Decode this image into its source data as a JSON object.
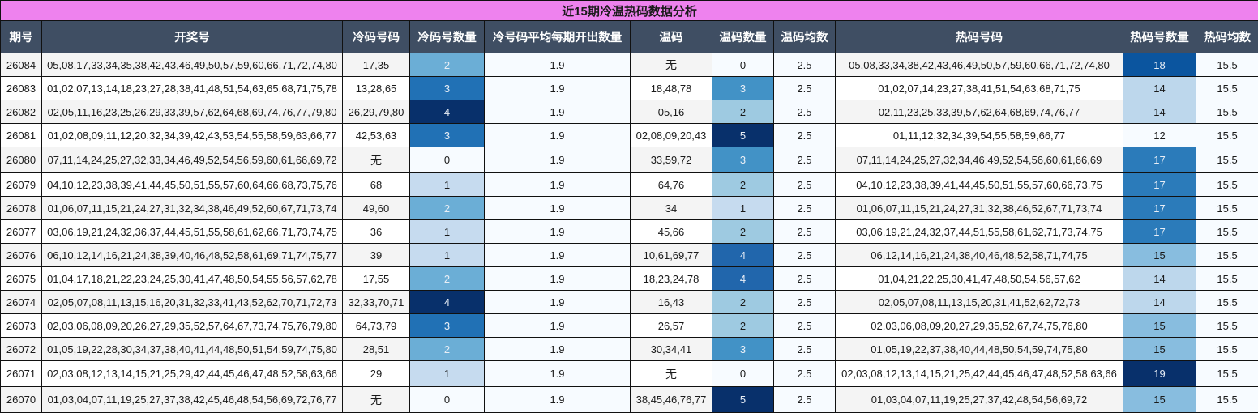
{
  "title": "近15期冷温热码数据分析",
  "columns": [
    "期号",
    "开奖号",
    "冷码号码",
    "冷码号数量",
    "冷号码平均每期开出数量",
    "温码",
    "温码数量",
    "温码均数",
    "热码号码",
    "热码号数量",
    "热码均数"
  ],
  "rows": [
    {
      "issue": "26084",
      "draw": "05,08,17,33,34,35,38,42,43,46,49,50,57,59,60,66,71,72,74,80",
      "cold": "17,35",
      "cold_count": "2",
      "cold_avg": "1.9",
      "warm": "无",
      "warm_count": "0",
      "warm_avg": "2.5",
      "hot": "05,08,33,34,38,42,43,46,49,50,57,59,60,66,71,72,74,80",
      "hot_count": "18",
      "hot_avg": "15.5"
    },
    {
      "issue": "26083",
      "draw": "01,02,07,13,14,18,23,27,28,38,41,48,51,54,63,65,68,71,75,78",
      "cold": "13,28,65",
      "cold_count": "3",
      "cold_avg": "1.9",
      "warm": "18,48,78",
      "warm_count": "3",
      "warm_avg": "2.5",
      "hot": "01,02,07,14,23,27,38,41,51,54,63,68,71,75",
      "hot_count": "14",
      "hot_avg": "15.5"
    },
    {
      "issue": "26082",
      "draw": "02,05,11,16,23,25,26,29,33,39,57,62,64,68,69,74,76,77,79,80",
      "cold": "26,29,79,80",
      "cold_count": "4",
      "cold_avg": "1.9",
      "warm": "05,16",
      "warm_count": "2",
      "warm_avg": "2.5",
      "hot": "02,11,23,25,33,39,57,62,64,68,69,74,76,77",
      "hot_count": "14",
      "hot_avg": "15.5"
    },
    {
      "issue": "26081",
      "draw": "01,02,08,09,11,12,20,32,34,39,42,43,53,54,55,58,59,63,66,77",
      "cold": "42,53,63",
      "cold_count": "3",
      "cold_avg": "1.9",
      "warm": "02,08,09,20,43",
      "warm_count": "5",
      "warm_avg": "2.5",
      "hot": "01,11,12,32,34,39,54,55,58,59,66,77",
      "hot_count": "12",
      "hot_avg": "15.5"
    },
    {
      "issue": "26080",
      "draw": "07,11,14,24,25,27,32,33,34,46,49,52,54,56,59,60,61,66,69,72",
      "cold": "无",
      "cold_count": "0",
      "cold_avg": "1.9",
      "warm": "33,59,72",
      "warm_count": "3",
      "warm_avg": "2.5",
      "hot": "07,11,14,24,25,27,32,34,46,49,52,54,56,60,61,66,69",
      "hot_count": "17",
      "hot_avg": "15.5"
    },
    {
      "issue": "26079",
      "draw": "04,10,12,23,38,39,41,44,45,50,51,55,57,60,64,66,68,73,75,76",
      "cold": "68",
      "cold_count": "1",
      "cold_avg": "1.9",
      "warm": "64,76",
      "warm_count": "2",
      "warm_avg": "2.5",
      "hot": "04,10,12,23,38,39,41,44,45,50,51,55,57,60,66,73,75",
      "hot_count": "17",
      "hot_avg": "15.5"
    },
    {
      "issue": "26078",
      "draw": "01,06,07,11,15,21,24,27,31,32,34,38,46,49,52,60,67,71,73,74",
      "cold": "49,60",
      "cold_count": "2",
      "cold_avg": "1.9",
      "warm": "34",
      "warm_count": "1",
      "warm_avg": "2.5",
      "hot": "01,06,07,11,15,21,24,27,31,32,38,46,52,67,71,73,74",
      "hot_count": "17",
      "hot_avg": "15.5"
    },
    {
      "issue": "26077",
      "draw": "03,06,19,21,24,32,36,37,44,45,51,55,58,61,62,66,71,73,74,75",
      "cold": "36",
      "cold_count": "1",
      "cold_avg": "1.9",
      "warm": "45,66",
      "warm_count": "2",
      "warm_avg": "2.5",
      "hot": "03,06,19,21,24,32,37,44,51,55,58,61,62,71,73,74,75",
      "hot_count": "17",
      "hot_avg": "15.5"
    },
    {
      "issue": "26076",
      "draw": "06,10,12,14,16,21,24,38,39,40,46,48,52,58,61,69,71,74,75,77",
      "cold": "39",
      "cold_count": "1",
      "cold_avg": "1.9",
      "warm": "10,61,69,77",
      "warm_count": "4",
      "warm_avg": "2.5",
      "hot": "06,12,14,16,21,24,38,40,46,48,52,58,71,74,75",
      "hot_count": "15",
      "hot_avg": "15.5"
    },
    {
      "issue": "26075",
      "draw": "01,04,17,18,21,22,23,24,25,30,41,47,48,50,54,55,56,57,62,78",
      "cold": "17,55",
      "cold_count": "2",
      "cold_avg": "1.9",
      "warm": "18,23,24,78",
      "warm_count": "4",
      "warm_avg": "2.5",
      "hot": "01,04,21,22,25,30,41,47,48,50,54,56,57,62",
      "hot_count": "14",
      "hot_avg": "15.5"
    },
    {
      "issue": "26074",
      "draw": "02,05,07,08,11,13,15,16,20,31,32,33,41,43,52,62,70,71,72,73",
      "cold": "32,33,70,71",
      "cold_count": "4",
      "cold_avg": "1.9",
      "warm": "16,43",
      "warm_count": "2",
      "warm_avg": "2.5",
      "hot": "02,05,07,08,11,13,15,20,31,41,52,62,72,73",
      "hot_count": "14",
      "hot_avg": "15.5"
    },
    {
      "issue": "26073",
      "draw": "02,03,06,08,09,20,26,27,29,35,52,57,64,67,73,74,75,76,79,80",
      "cold": "64,73,79",
      "cold_count": "3",
      "cold_avg": "1.9",
      "warm": "26,57",
      "warm_count": "2",
      "warm_avg": "2.5",
      "hot": "02,03,06,08,09,20,27,29,35,52,67,74,75,76,80",
      "hot_count": "15",
      "hot_avg": "15.5"
    },
    {
      "issue": "26072",
      "draw": "01,05,19,22,28,30,34,37,38,40,41,44,48,50,51,54,59,74,75,80",
      "cold": "28,51",
      "cold_count": "2",
      "cold_avg": "1.9",
      "warm": "30,34,41",
      "warm_count": "3",
      "warm_avg": "2.5",
      "hot": "01,05,19,22,37,38,40,44,48,50,54,59,74,75,80",
      "hot_count": "15",
      "hot_avg": "15.5"
    },
    {
      "issue": "26071",
      "draw": "02,03,08,12,13,14,15,21,25,29,42,44,45,46,47,48,52,58,63,66",
      "cold": "29",
      "cold_count": "1",
      "cold_avg": "1.9",
      "warm": "无",
      "warm_count": "0",
      "warm_avg": "2.5",
      "hot": "02,03,08,12,13,14,15,21,25,42,44,45,46,47,48,52,58,63,66",
      "hot_count": "19",
      "hot_avg": "15.5"
    },
    {
      "issue": "26070",
      "draw": "01,03,04,07,11,19,25,27,37,38,42,45,46,48,54,56,69,72,76,77",
      "cold": "无",
      "cold_count": "0",
      "cold_avg": "1.9",
      "warm": "38,45,46,76,77",
      "warm_count": "5",
      "warm_avg": "2.5",
      "hot": "01,03,04,07,11,19,25,27,37,42,48,54,56,69,72",
      "hot_count": "15",
      "hot_avg": "15.5"
    }
  ],
  "colors": {
    "title_bg": "#ee82ee",
    "header_bg": "#3f4e63",
    "cold_scale": {
      "0": "#f7fbff",
      "1": "#c6dbef",
      "2": "#6baed6",
      "3": "#2171b5",
      "4": "#08306b"
    },
    "warm_scale": {
      "0": "#f7fbff",
      "1": "#c6dbef",
      "2": "#9ecae1",
      "3": "#4292c6",
      "4": "#2166ac",
      "5": "#08306b"
    },
    "hot_scale": {
      "12": "#f7fbff",
      "14": "#bdd7ec",
      "15": "#88bddf",
      "17": "#2b7bba",
      "18": "#0b559f",
      "19": "#08306b"
    }
  }
}
